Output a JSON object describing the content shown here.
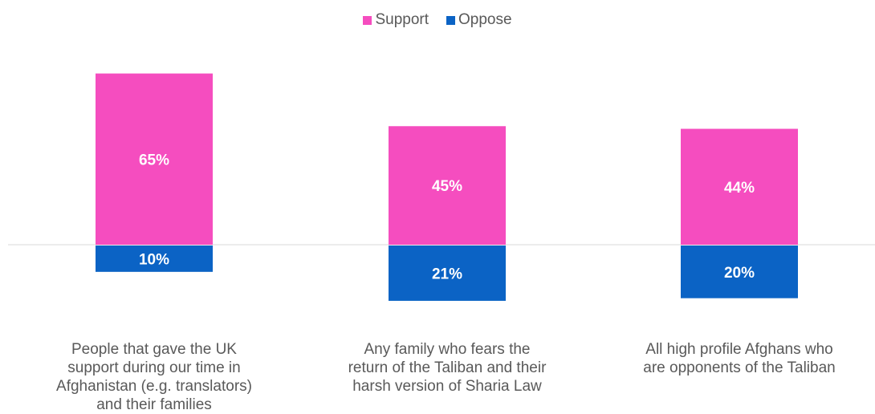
{
  "chart_data": {
    "type": "bar",
    "stacked_diverging": true,
    "categories": [
      "People that gave the UK support during our time in Afghanistan (e.g. translators) and their families",
      "Any family who fears the return of the Taliban and their harsh version of Sharia Law",
      "All high profile Afghans who are opponents of the Taliban"
    ],
    "series": [
      {
        "name": "Support",
        "values": [
          65,
          45,
          44
        ],
        "labels": [
          "65%",
          "45%",
          "44%"
        ],
        "color": "#f54dbf"
      },
      {
        "name": "Oppose",
        "values": [
          -10,
          -21,
          -20
        ],
        "labels": [
          "10%",
          "21%",
          "20%"
        ],
        "color": "#0b63c5"
      }
    ],
    "legend_position": "top-center",
    "grid": false,
    "ylim": [
      -22,
      70
    ]
  }
}
